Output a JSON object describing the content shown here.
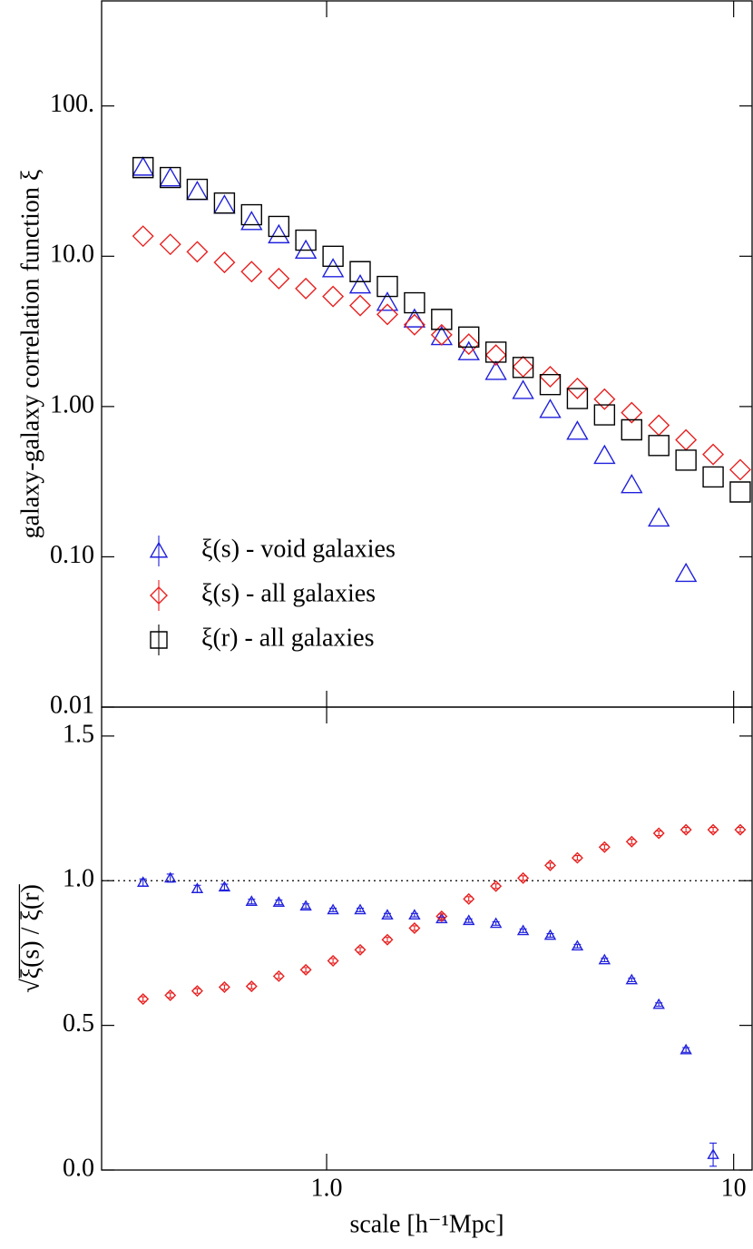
{
  "chart_data": [
    {
      "type": "scatter",
      "ylabel": "galaxy-galaxy correlation function ξ",
      "xscale": "log",
      "yscale": "log",
      "xlim": [
        0.28,
        11.1
      ],
      "ylim": [
        0.01,
        500
      ],
      "yticks": [
        {
          "value": 100,
          "label": "100."
        },
        {
          "value": 10,
          "label": "10.0"
        },
        {
          "value": 1,
          "label": "1.00"
        },
        {
          "value": 0.1,
          "label": "0.10"
        },
        0.01
      ],
      "legend": "lower left",
      "x": [
        0.354,
        0.413,
        0.481,
        0.561,
        0.654,
        0.763,
        0.889,
        1.037,
        1.209,
        1.41,
        1.644,
        1.917,
        2.235,
        2.606,
        3.039,
        3.543,
        4.131,
        4.817,
        5.617,
        6.549,
        7.637,
        8.905,
        10.38
      ],
      "series": [
        {
          "name": "ξ(s) - void galaxies",
          "color": "#2020dd",
          "marker": "triangle",
          "values": [
            38.9,
            33,
            26.8,
            21.7,
            16.9,
            13.8,
            10.9,
            8.2,
            6.4,
            4.9,
            3.8,
            2.9,
            2.3,
            1.7,
            1.27,
            0.95,
            0.68,
            0.47,
            0.3,
            0.18,
            0.077,
            null,
            null
          ]
        },
        {
          "name": "ξ(s) - all galaxies",
          "color": "#e82020",
          "marker": "diamond",
          "values": [
            13.6,
            12.0,
            10.7,
            9.1,
            7.9,
            7.1,
            6.1,
            5.4,
            4.7,
            4.1,
            3.5,
            3.0,
            2.6,
            2.2,
            1.84,
            1.58,
            1.32,
            1.12,
            0.91,
            0.75,
            0.6,
            0.48,
            0.38
          ]
        },
        {
          "name": "ξ(r) - all galaxies",
          "color": "#000000",
          "marker": "square",
          "values": [
            38.9,
            33.4,
            27.9,
            22.6,
            18.9,
            15.8,
            12.8,
            10.0,
            7.9,
            6.3,
            4.9,
            3.8,
            2.9,
            2.3,
            1.82,
            1.4,
            1.13,
            0.88,
            0.7,
            0.55,
            0.44,
            0.34,
            0.27
          ]
        }
      ]
    },
    {
      "type": "scatter",
      "xlabel": "scale [h⁻¹Mpc]",
      "ylabel": "√ξ(s) / ξ(r)",
      "xscale": "log",
      "xlim": [
        0.28,
        11.1
      ],
      "ylim": [
        0,
        1.6
      ],
      "xticks": [
        {
          "value": 1,
          "label": "1.0"
        },
        10
      ],
      "yticks": [
        {
          "value": 0,
          "label": "0.0"
        },
        0.5,
        {
          "value": 1,
          "label": "1.0"
        },
        1.5
      ],
      "hline": 1,
      "x": [
        0.354,
        0.413,
        0.481,
        0.561,
        0.654,
        0.763,
        0.889,
        1.037,
        1.209,
        1.41,
        1.644,
        1.917,
        2.235,
        2.606,
        3.039,
        3.543,
        4.131,
        4.817,
        5.617,
        6.549,
        7.637,
        8.905,
        10.38
      ],
      "series": [
        {
          "color": "#2020dd",
          "marker": "triangle",
          "values": [
            0.994,
            1.009,
            0.972,
            0.978,
            0.928,
            0.925,
            0.912,
            0.899,
            0.899,
            0.881,
            0.881,
            0.868,
            0.862,
            0.852,
            0.827,
            0.811,
            0.774,
            0.726,
            0.657,
            0.572,
            0.415,
            0.053,
            null
          ],
          "errors": [
            0.012,
            0.014,
            0.012,
            0.01,
            0.008,
            0.008,
            0.008,
            0.006,
            0.006,
            0.006,
            0.006,
            0.006,
            0.006,
            0.006,
            0.006,
            0.006,
            0.006,
            0.006,
            0.006,
            0.006,
            0.008,
            0.04,
            null
          ]
        },
        {
          "color": "#e82020",
          "marker": "diamond",
          "values": [
            0.591,
            0.604,
            0.619,
            0.632,
            0.635,
            0.67,
            0.692,
            0.723,
            0.761,
            0.796,
            0.836,
            0.877,
            0.937,
            0.981,
            1.009,
            1.053,
            1.079,
            1.116,
            1.135,
            1.164,
            1.176,
            1.176,
            1.176
          ],
          "errors": [
            0.008,
            0.008,
            0.008,
            0.008,
            0.008,
            0.008,
            0.008,
            0.008,
            0.008,
            0.008,
            0.008,
            0.008,
            0.008,
            0.008,
            0.008,
            0.008,
            0.008,
            0.008,
            0.008,
            0.008,
            0.008,
            0.008,
            0.008
          ]
        }
      ]
    }
  ]
}
